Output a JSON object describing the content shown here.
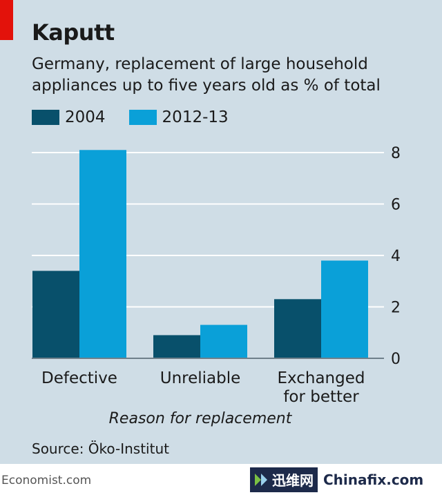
{
  "title": "Kaputt",
  "subtitle": "Germany, replacement of large household appliances up to five years old as % of total",
  "source": "Source: Öko-Institut",
  "footer": {
    "brand": "Economist.com",
    "watermark_cn": "迅维网",
    "watermark_en": "Chinafix.com"
  },
  "colors": {
    "background": "#cfdde6",
    "series_2004": "#08506b",
    "series_2012": "#0aa0d8",
    "grid": "#ffffff",
    "accent": "#e3120b"
  },
  "chart_data": {
    "type": "bar",
    "title": "Kaputt",
    "subtitle": "Germany, replacement of large household appliances up to five years old as % of total",
    "categories": [
      "Defective",
      "Unreliable",
      "Exchanged for better"
    ],
    "category_lines": [
      [
        "Defective"
      ],
      [
        "Unreliable"
      ],
      [
        "Exchanged",
        "for better"
      ]
    ],
    "series": [
      {
        "name": "2004",
        "values": [
          3.4,
          0.9,
          2.3
        ]
      },
      {
        "name": "2012-13",
        "values": [
          8.1,
          1.3,
          3.8
        ]
      }
    ],
    "xlabel": "Reason for replacement",
    "ylabel": "",
    "ylim": [
      0,
      8
    ],
    "yticks": [
      0,
      2,
      4,
      6,
      8
    ],
    "grid": true,
    "legend": "top-left"
  }
}
